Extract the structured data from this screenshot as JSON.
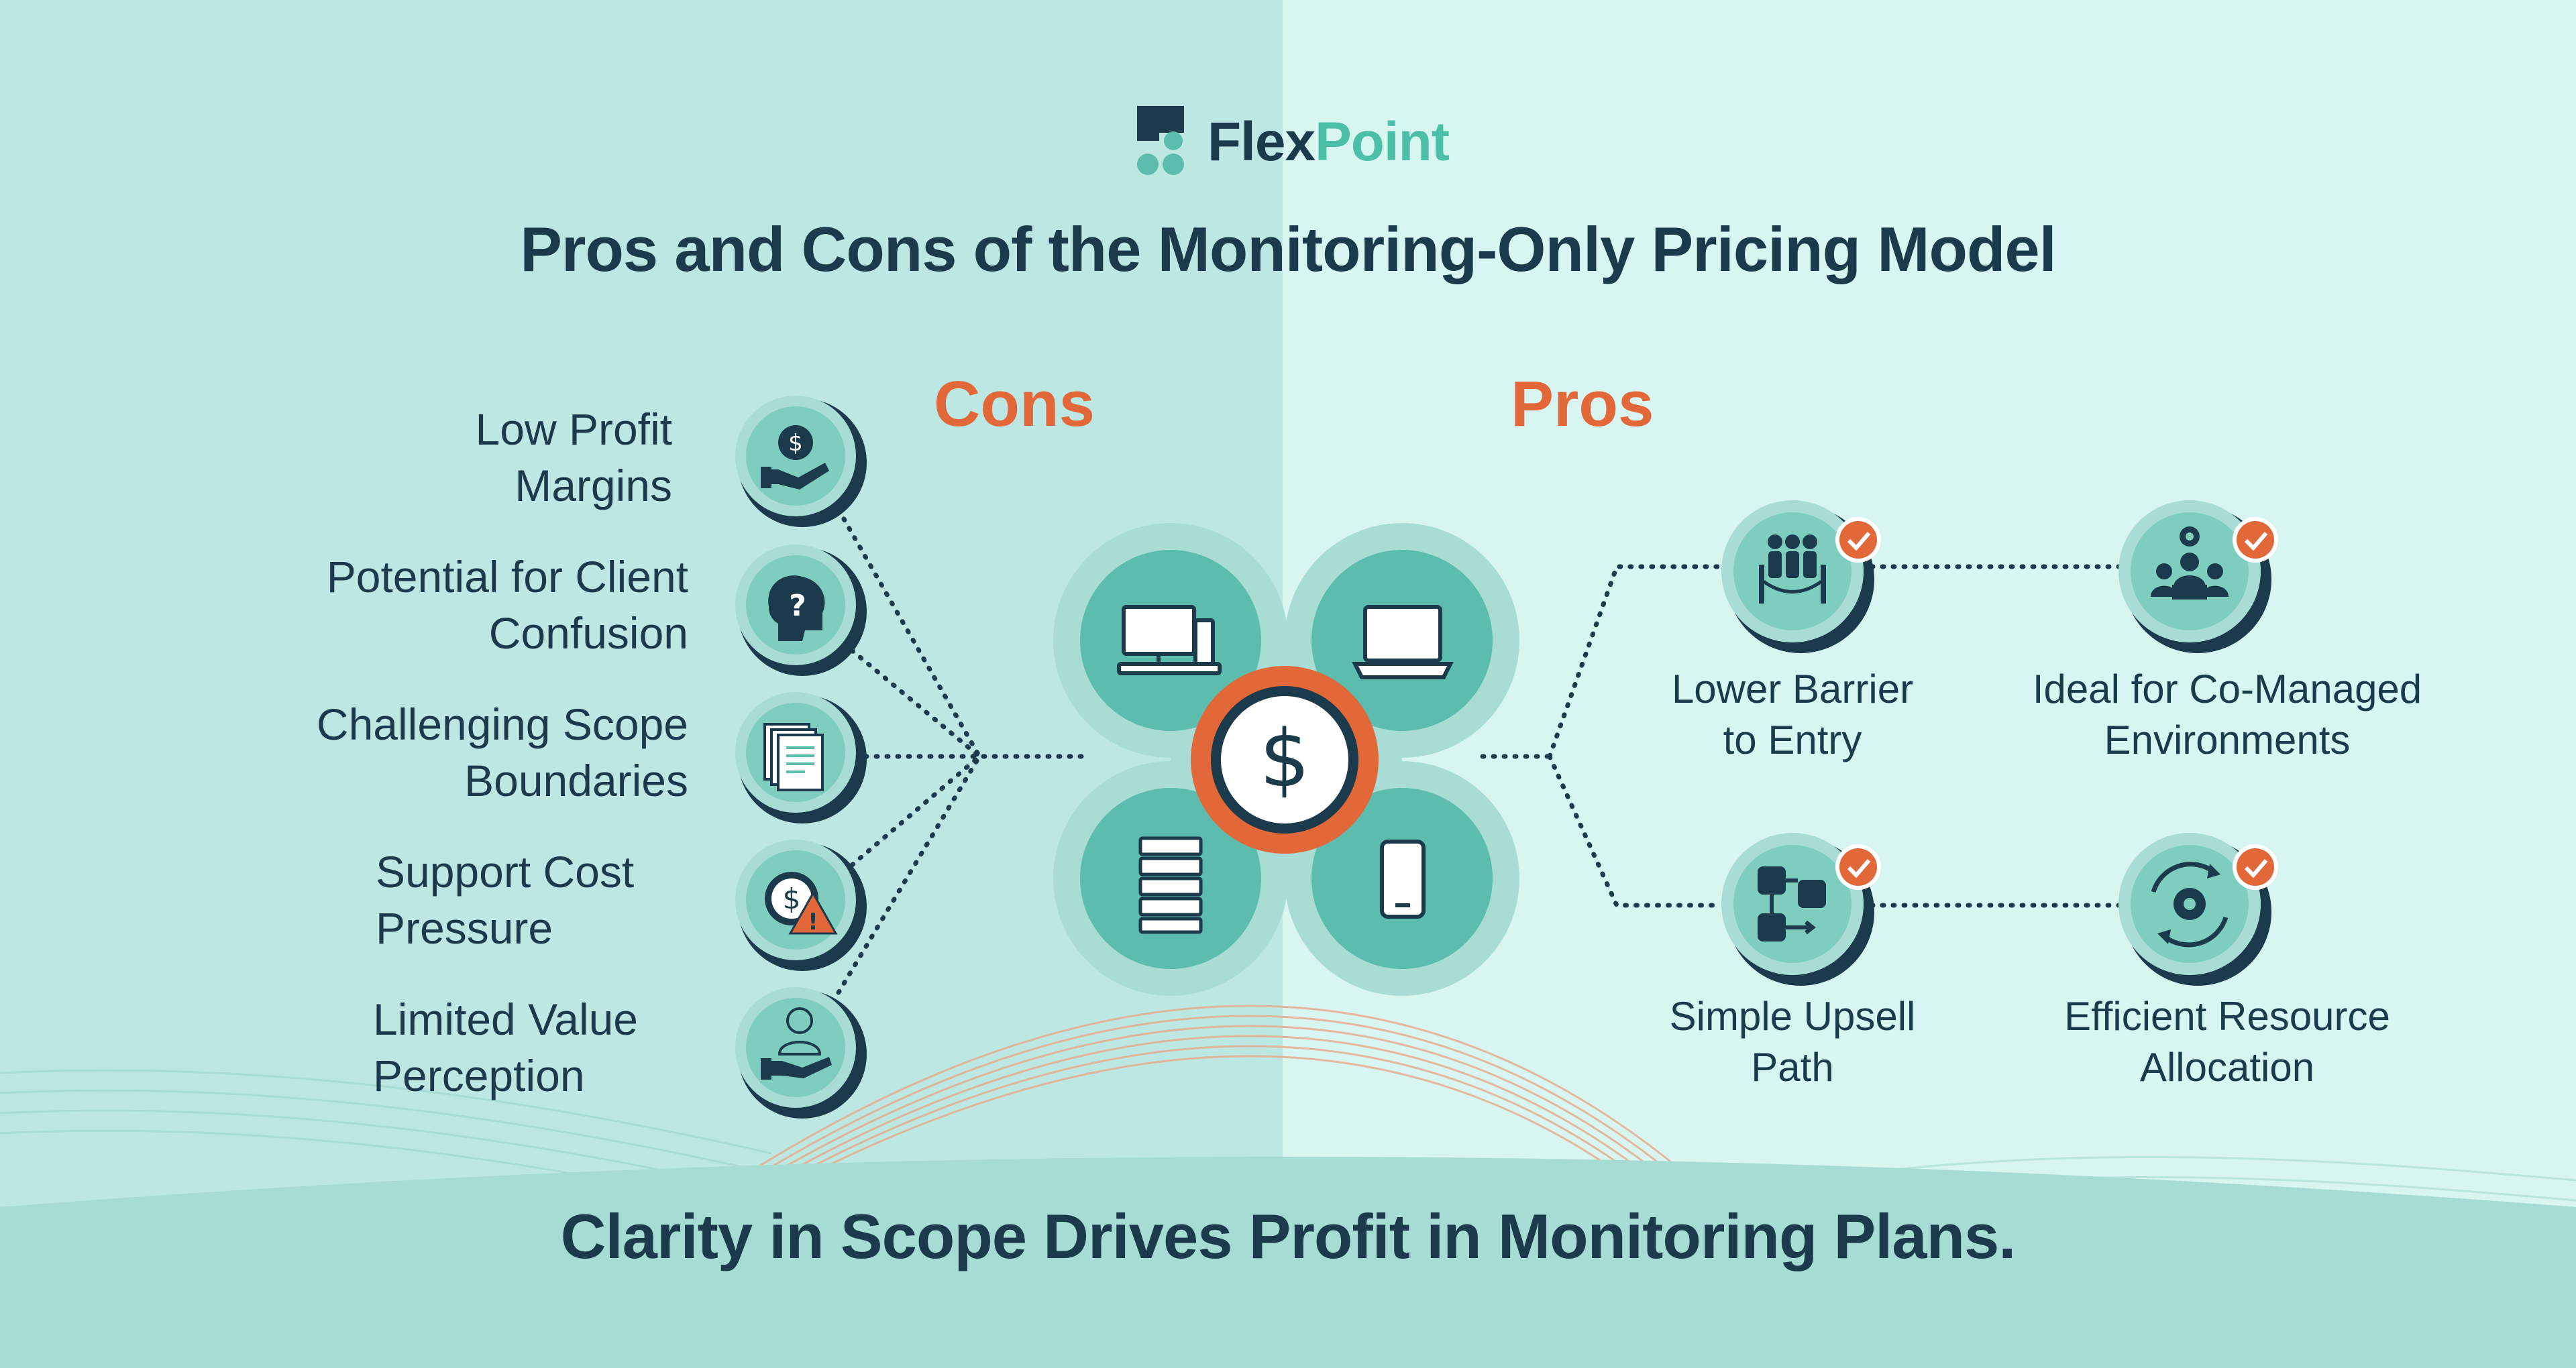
{
  "brand": {
    "name_part1": "Flex",
    "name_part2": "Point"
  },
  "title": "Pros and Cons of the Monitoring-Only Pricing Model",
  "cons_heading": "Cons",
  "pros_heading": "Pros",
  "cons": [
    {
      "line1": "Low Profit",
      "line2": "Margins",
      "icon": "hand-coin-icon"
    },
    {
      "line1": "Potential for Client",
      "line2": "Confusion",
      "icon": "question-head-icon"
    },
    {
      "line1": "Challenging Scope",
      "line2": "Boundaries",
      "icon": "documents-icon"
    },
    {
      "line1": "Support Cost",
      "line2": "Pressure",
      "icon": "cost-warning-icon"
    },
    {
      "line1": "Limited Value",
      "line2": "Perception",
      "icon": "person-hand-icon"
    }
  ],
  "pros": [
    {
      "line1": "Lower Barrier",
      "line2": "to Entry",
      "icon": "people-rope-icon"
    },
    {
      "line1": "Ideal for Co-Managed",
      "line2": "Environments",
      "icon": "team-gear-icon"
    },
    {
      "line1": "Simple Upsell",
      "line2": "Path",
      "icon": "flow-path-icon"
    },
    {
      "line1": "Efficient Resource",
      "line2": "Allocation",
      "icon": "cycle-gear-icon"
    }
  ],
  "center_icons": [
    "desktop-icon",
    "laptop-icon",
    "server-icon",
    "phone-icon",
    "dollar-icon"
  ],
  "footer": "Clarity in Scope Drives Profit in Monitoring Plans.",
  "colors": {
    "dark": "#1b3a4b",
    "accent_orange": "#e2683a",
    "teal": "#5cbcad",
    "teal_light": "#b7e6df",
    "bg_left": "#bde7e2",
    "bg_right": "#d9f5f1",
    "brand_teal": "#4bbfa8"
  }
}
